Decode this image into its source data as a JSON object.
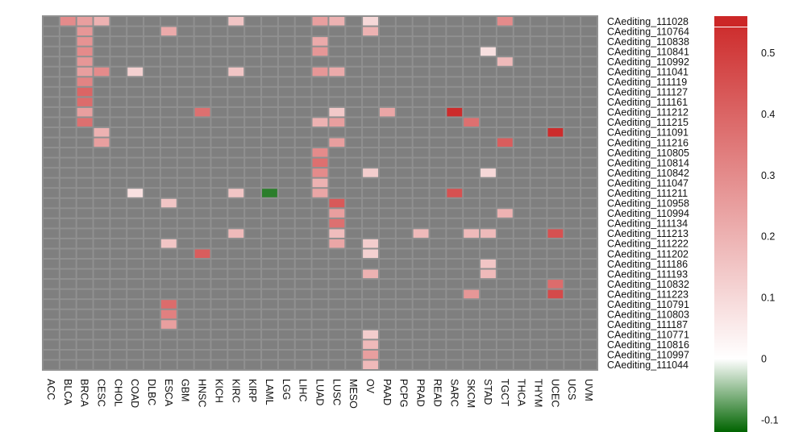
{
  "chart_data": {
    "type": "heatmap",
    "title": "",
    "columns": [
      "ACC",
      "BLCA",
      "BRCA",
      "CESC",
      "CHOL",
      "COAD",
      "DLBC",
      "ESCA",
      "GBM",
      "HNSC",
      "KICH",
      "KIRC",
      "KIRP",
      "LAML",
      "LGG",
      "LIHC",
      "LUAD",
      "LUSC",
      "MESO",
      "OV",
      "PAAD",
      "PCPG",
      "PRAD",
      "READ",
      "SARC",
      "SKCM",
      "STAD",
      "TGCT",
      "THCA",
      "THYM",
      "UCEC",
      "UCS",
      "UVM"
    ],
    "rows": [
      "CAediting_111028",
      "CAediting_110764",
      "CAediting_110838",
      "CAediting_110841",
      "CAediting_110992",
      "CAediting_111041",
      "CAediting_111119",
      "CAediting_111127",
      "CAediting_111161",
      "CAediting_111212",
      "CAediting_111215",
      "CAediting_111091",
      "CAediting_111216",
      "CAediting_110805",
      "CAediting_110814",
      "CAediting_110842",
      "CAediting_111047",
      "CAediting_111211",
      "CAediting_110958",
      "CAediting_110994",
      "CAediting_111134",
      "CAediting_111213",
      "CAediting_111222",
      "CAediting_111202",
      "CAediting_111186",
      "CAediting_111193",
      "CAediting_110832",
      "CAediting_111223",
      "CAediting_110791",
      "CAediting_110803",
      "CAediting_111187",
      "CAediting_110771",
      "CAediting_110816",
      "CAediting_110997",
      "CAediting_111044"
    ],
    "missing_color": "#7f7f7f",
    "cells": [
      [
        "CAediting_111028",
        "BLCA",
        0.3
      ],
      [
        "CAediting_111028",
        "BRCA",
        0.25
      ],
      [
        "CAediting_111028",
        "CESC",
        0.2
      ],
      [
        "CAediting_111028",
        "KIRC",
        0.15
      ],
      [
        "CAediting_111028",
        "LUAD",
        0.25
      ],
      [
        "CAediting_111028",
        "LUSC",
        0.2
      ],
      [
        "CAediting_111028",
        "OV",
        0.1
      ],
      [
        "CAediting_111028",
        "TGCT",
        0.3
      ],
      [
        "CAediting_110764",
        "BRCA",
        0.27
      ],
      [
        "CAediting_110764",
        "ESCA",
        0.22
      ],
      [
        "CAediting_110764",
        "OV",
        0.2
      ],
      [
        "CAediting_110838",
        "BRCA",
        0.28
      ],
      [
        "CAediting_110838",
        "LUAD",
        0.22
      ],
      [
        "CAediting_110841",
        "BRCA",
        0.3
      ],
      [
        "CAediting_110841",
        "LUAD",
        0.27
      ],
      [
        "CAediting_110841",
        "STAD",
        0.08
      ],
      [
        "CAediting_110992",
        "BRCA",
        0.27
      ],
      [
        "CAediting_110992",
        "TGCT",
        0.18
      ],
      [
        "CAediting_111041",
        "BRCA",
        0.25
      ],
      [
        "CAediting_111041",
        "CESC",
        0.3
      ],
      [
        "CAediting_111041",
        "COAD",
        0.12
      ],
      [
        "CAediting_111041",
        "KIRC",
        0.15
      ],
      [
        "CAediting_111041",
        "LUAD",
        0.27
      ],
      [
        "CAediting_111041",
        "LUSC",
        0.22
      ],
      [
        "CAediting_111119",
        "BRCA",
        0.32
      ],
      [
        "CAediting_111127",
        "BRCA",
        0.4
      ],
      [
        "CAediting_111161",
        "BRCA",
        0.38
      ],
      [
        "CAediting_111212",
        "BRCA",
        0.25
      ],
      [
        "CAediting_111212",
        "HNSC",
        0.37
      ],
      [
        "CAediting_111212",
        "LUSC",
        0.14
      ],
      [
        "CAediting_111212",
        "PAAD",
        0.23
      ],
      [
        "CAediting_111212",
        "SARC",
        0.55
      ],
      [
        "CAediting_111215",
        "BRCA",
        0.37
      ],
      [
        "CAediting_111215",
        "LUAD",
        0.2
      ],
      [
        "CAediting_111215",
        "LUSC",
        0.25
      ],
      [
        "CAediting_111215",
        "SKCM",
        0.37
      ],
      [
        "CAediting_111091",
        "CESC",
        0.2
      ],
      [
        "CAediting_111091",
        "UCEC",
        0.55
      ],
      [
        "CAediting_111216",
        "CESC",
        0.25
      ],
      [
        "CAediting_111216",
        "LUSC",
        0.25
      ],
      [
        "CAediting_111216",
        "TGCT",
        0.42
      ],
      [
        "CAediting_110805",
        "LUAD",
        0.3
      ],
      [
        "CAediting_110814",
        "LUAD",
        0.37
      ],
      [
        "CAediting_110842",
        "LUAD",
        0.3
      ],
      [
        "CAediting_110842",
        "OV",
        0.13
      ],
      [
        "CAediting_110842",
        "STAD",
        0.1
      ],
      [
        "CAediting_111047",
        "LUAD",
        0.2
      ],
      [
        "CAediting_111211",
        "COAD",
        0.08
      ],
      [
        "CAediting_111211",
        "KIRC",
        0.15
      ],
      [
        "CAediting_111211",
        "LAML",
        -0.1
      ],
      [
        "CAediting_111211",
        "LUAD",
        0.23
      ],
      [
        "CAediting_111211",
        "SARC",
        0.45
      ],
      [
        "CAediting_110958",
        "ESCA",
        0.15
      ],
      [
        "CAediting_110958",
        "LUSC",
        0.43
      ],
      [
        "CAediting_110994",
        "LUSC",
        0.25
      ],
      [
        "CAediting_110994",
        "TGCT",
        0.2
      ],
      [
        "CAediting_111134",
        "LUSC",
        0.37
      ],
      [
        "CAediting_111213",
        "KIRC",
        0.18
      ],
      [
        "CAediting_111213",
        "LUSC",
        0.17
      ],
      [
        "CAediting_111213",
        "PRAD",
        0.18
      ],
      [
        "CAediting_111213",
        "SKCM",
        0.18
      ],
      [
        "CAediting_111213",
        "STAD",
        0.18
      ],
      [
        "CAediting_111213",
        "UCEC",
        0.45
      ],
      [
        "CAediting_111222",
        "ESCA",
        0.15
      ],
      [
        "CAediting_111222",
        "LUSC",
        0.23
      ],
      [
        "CAediting_111222",
        "OV",
        0.13
      ],
      [
        "CAediting_111202",
        "HNSC",
        0.42
      ],
      [
        "CAediting_111202",
        "OV",
        0.12
      ],
      [
        "CAediting_111186",
        "STAD",
        0.15
      ],
      [
        "CAediting_111193",
        "OV",
        0.2
      ],
      [
        "CAediting_111193",
        "STAD",
        0.18
      ],
      [
        "CAediting_110832",
        "UCEC",
        0.38
      ],
      [
        "CAediting_111223",
        "SKCM",
        0.27
      ],
      [
        "CAediting_111223",
        "UCEC",
        0.47
      ],
      [
        "CAediting_110791",
        "ESCA",
        0.38
      ],
      [
        "CAediting_110803",
        "ESCA",
        0.33
      ],
      [
        "CAediting_111187",
        "ESCA",
        0.25
      ],
      [
        "CAediting_110771",
        "OV",
        0.13
      ],
      [
        "CAediting_110816",
        "OV",
        0.18
      ],
      [
        "CAediting_110997",
        "OV",
        0.25
      ],
      [
        "CAediting_111044",
        "OV",
        0.18
      ]
    ],
    "colorbar": {
      "range": [
        -0.12,
        0.56
      ],
      "ticks": [
        0.5,
        0.4,
        0.3,
        0.2,
        0.1,
        0,
        -0.1
      ],
      "tick_labels": [
        "0.5",
        "0.4",
        "0.3",
        "0.2",
        "0.1",
        "0",
        "-0.1"
      ],
      "low_color": "#006400",
      "mid_color": "#ffffff",
      "high_color": "#cc2727"
    }
  }
}
